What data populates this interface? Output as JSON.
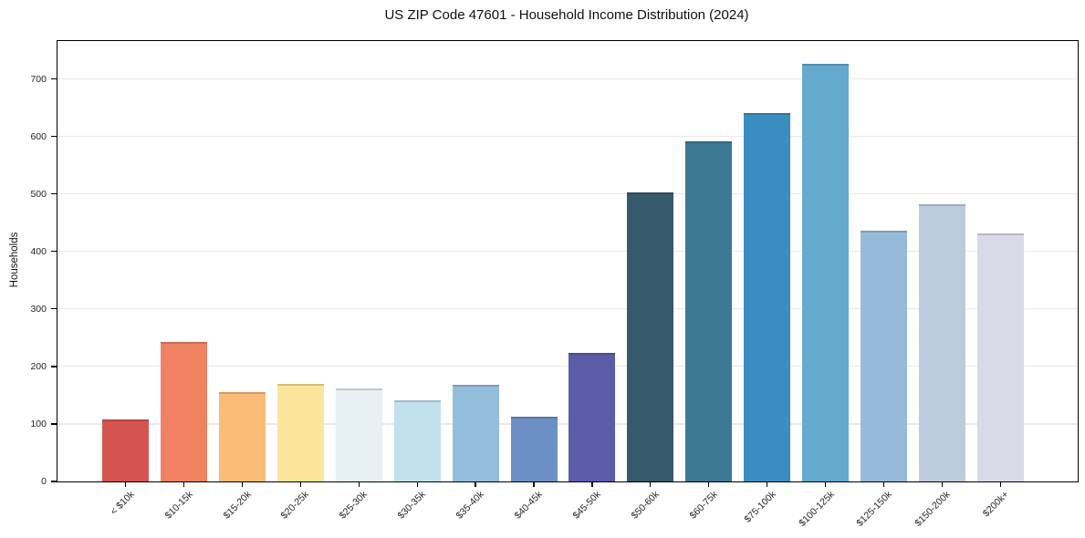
{
  "title": "US ZIP Code 47601 - Household Income Distribution (2024)",
  "chart_data": {
    "type": "bar",
    "title": "US ZIP Code 47601 - Household Income Distribution (2024)",
    "xlabel": "",
    "ylabel": "Households",
    "categories": [
      "< $10k",
      "$10-15k",
      "$15-20k",
      "$20-25k",
      "$25-30k",
      "$30-35k",
      "$35-40k",
      "$40-45k",
      "$45-50k",
      "$50-60k",
      "$60-75k",
      "$75-100k",
      "$100-125k",
      "$125-150k",
      "$150-200k",
      "$200k+"
    ],
    "values": [
      108,
      243,
      155,
      170,
      161,
      141,
      168,
      112,
      223,
      503,
      592,
      640,
      726,
      436,
      482,
      432
    ],
    "bar_colors": [
      "#d6544f",
      "#f08262",
      "#fbbc78",
      "#fde49c",
      "#e7f0f3",
      "#c1e1ec",
      "#93bedb",
      "#6c90c6",
      "#5a5ca8",
      "#365a6c",
      "#3b7995",
      "#3a8dc0",
      "#64a9ce",
      "#96bad9",
      "#bdcbdf",
      "#d9dae7"
    ],
    "yticks": [
      0,
      100,
      200,
      300,
      400,
      500,
      600,
      700
    ],
    "ylim": [
      0,
      766
    ],
    "grid": "horizontal",
    "legend": "none",
    "background_color": "#ffffff",
    "grid_color": "#e9e9ed",
    "spine_color": "#000000",
    "tick_label_color": "#262626"
  }
}
